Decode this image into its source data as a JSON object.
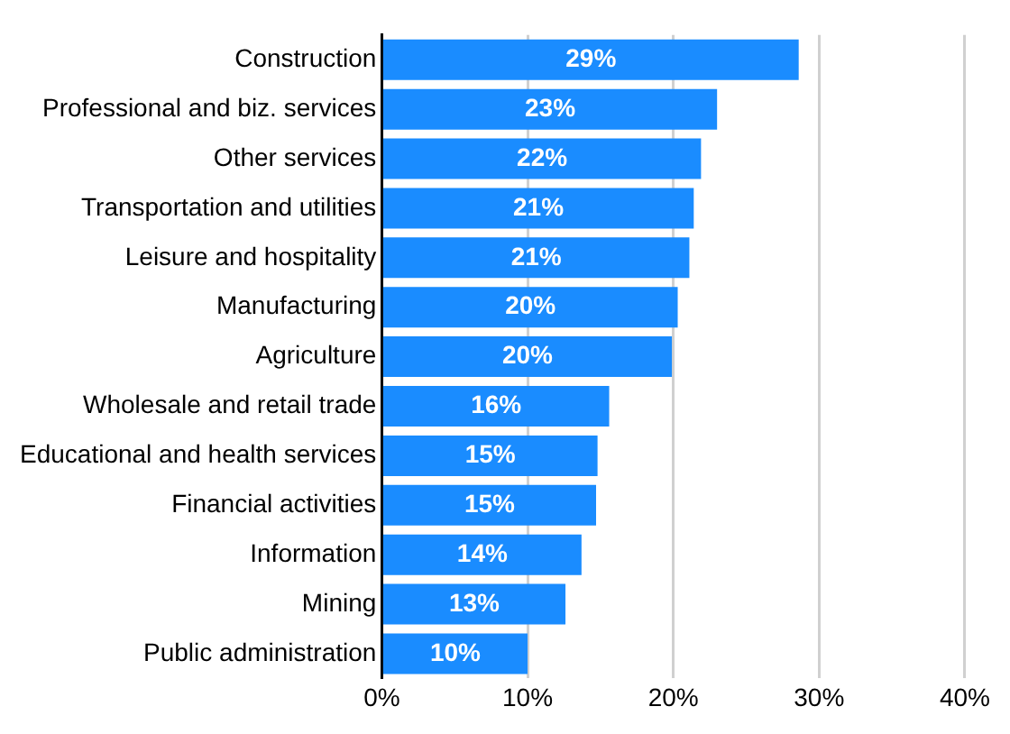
{
  "chart_data": {
    "type": "bar",
    "orientation": "horizontal",
    "categories": [
      "Construction",
      "Professional and biz. services",
      "Other services",
      "Transportation and utilities",
      "Leisure and hospitality",
      "Manufacturing",
      "Agriculture",
      "Wholesale and retail trade",
      "Educational and health services",
      "Financial activities",
      "Information",
      "Mining",
      "Public administration"
    ],
    "values": [
      28.6,
      23.0,
      21.9,
      21.4,
      21.1,
      20.3,
      19.9,
      15.6,
      14.8,
      14.7,
      13.7,
      12.6,
      10.0
    ],
    "value_labels": [
      "29%",
      "23%",
      "22%",
      "21%",
      "21%",
      "20%",
      "20%",
      "16%",
      "15%",
      "15%",
      "14%",
      "13%",
      "10%"
    ],
    "color": "#1a8cff",
    "xlim": [
      0,
      40
    ],
    "xticks": [
      {
        "value": 0,
        "label": "0%"
      },
      {
        "value": 10,
        "label": "10%"
      },
      {
        "value": 20,
        "label": "20%"
      },
      {
        "value": 30,
        "label": "30%"
      },
      {
        "value": 40,
        "label": "40%"
      }
    ],
    "grid": "x"
  }
}
